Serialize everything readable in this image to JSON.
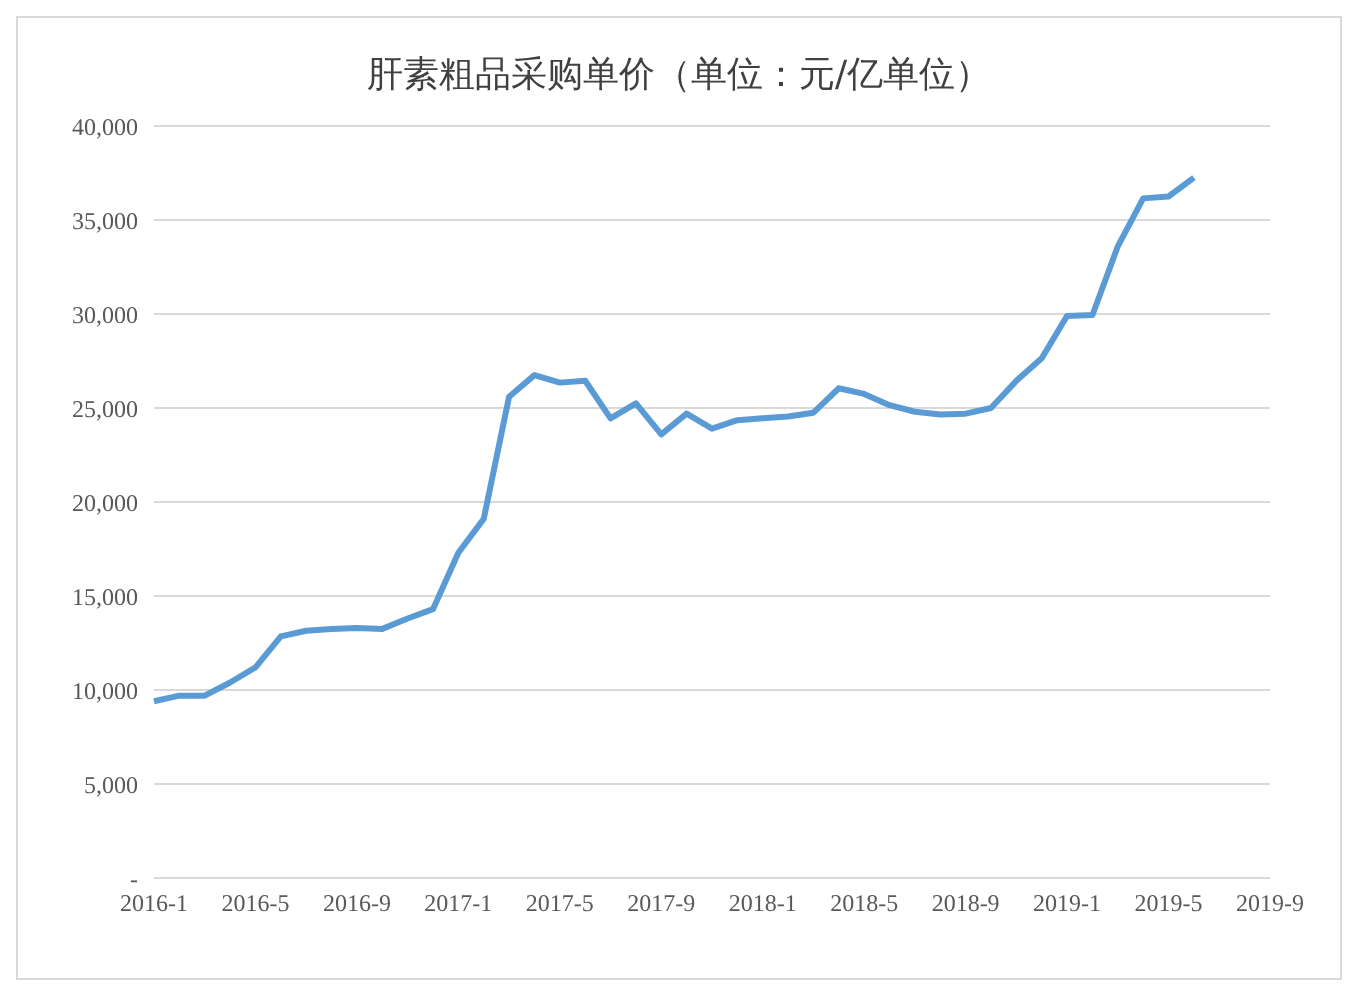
{
  "chart_data": {
    "type": "line",
    "title": "肝素粗品采购单价（单位：元/亿单位）",
    "categories": [
      "2016-1",
      null,
      null,
      null,
      "2016-5",
      null,
      null,
      null,
      "2016-9",
      null,
      null,
      null,
      "2017-1",
      null,
      null,
      null,
      "2017-5",
      null,
      null,
      null,
      "2017-9",
      null,
      null,
      null,
      "2018-1",
      null,
      null,
      null,
      "2018-5",
      null,
      null,
      null,
      "2018-9",
      null,
      null,
      null,
      "2019-1",
      null,
      null,
      null,
      "2019-5",
      null,
      null,
      null,
      "2019-9"
    ],
    "series": [
      {
        "color": "#5b9bd5",
        "values": [
          9400,
          9700,
          9700,
          10400,
          11200,
          12850,
          13150,
          13250,
          13300,
          13250,
          13800,
          14300,
          17300,
          19100,
          25600,
          26750,
          26350,
          26450,
          24450,
          25250,
          23600,
          24700,
          23900,
          24350,
          24450,
          24550,
          24750,
          26050,
          25750,
          25150,
          24800,
          24650,
          24700,
          25000,
          26450,
          27650,
          29900,
          29950,
          33600,
          36150,
          36250,
          37250,
          null,
          null,
          null
        ]
      }
    ],
    "ylim": [
      0,
      40000
    ],
    "yticks": [
      {
        "value": 0,
        "label": "-"
      },
      {
        "value": 5000,
        "label": "5,000"
      },
      {
        "value": 10000,
        "label": "10,000"
      },
      {
        "value": 15000,
        "label": "15,000"
      },
      {
        "value": 20000,
        "label": "20,000"
      },
      {
        "value": 25000,
        "label": "25,000"
      },
      {
        "value": 30000,
        "label": "30,000"
      },
      {
        "value": 35000,
        "label": "35,000"
      },
      {
        "value": 40000,
        "label": "40,000"
      }
    ],
    "grid": "y",
    "legend": false,
    "marker": "none",
    "line_style": "solid"
  }
}
